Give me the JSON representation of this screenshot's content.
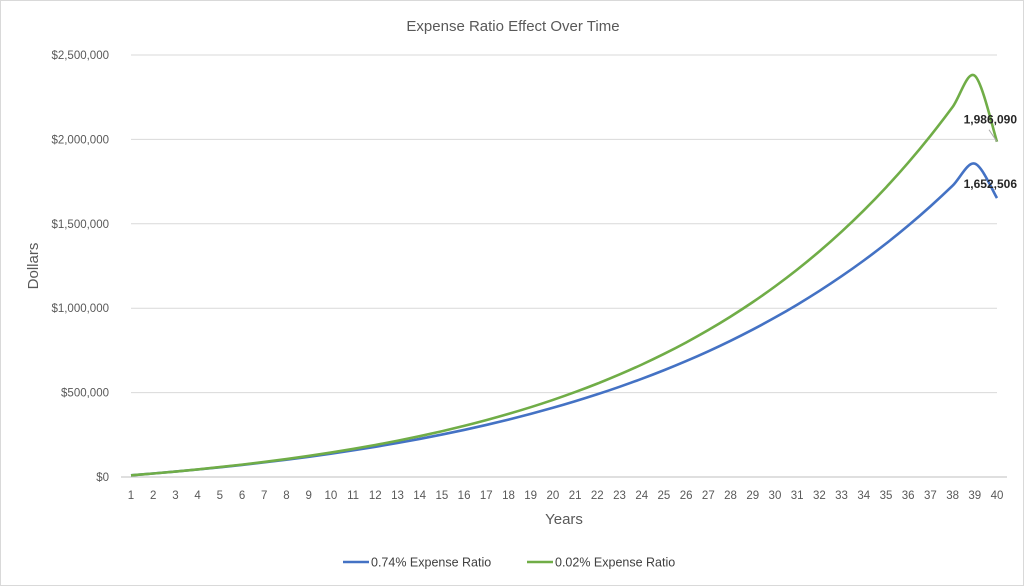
{
  "chart_data": {
    "type": "line",
    "title": "Expense Ratio Effect Over Time",
    "xlabel": "Years",
    "ylabel": "Dollars",
    "x": [
      1,
      2,
      3,
      4,
      5,
      6,
      7,
      8,
      9,
      10,
      11,
      12,
      13,
      14,
      15,
      16,
      17,
      18,
      19,
      20,
      21,
      22,
      23,
      24,
      25,
      26,
      27,
      28,
      29,
      30,
      31,
      32,
      33,
      34,
      35,
      36,
      37,
      38,
      39,
      40
    ],
    "ylim": [
      0,
      2500000
    ],
    "yticks": [
      0,
      500000,
      1000000,
      1500000,
      2000000,
      2500000
    ],
    "ytick_labels": [
      "$0",
      "$500,000",
      "$1,000,000",
      "$1,500,000",
      "$2,000,000",
      "$2,500,000"
    ],
    "grid": true,
    "legend_position": "bottom",
    "series": [
      {
        "name": "0.74% Expense Ratio",
        "color": "#4472c4",
        "values": [
          10000,
          20700,
          32149,
          44399,
          57507,
          71533,
          86540,
          102598,
          119780,
          138164,
          157836,
          178884,
          201406,
          225504,
          251290,
          278880,
          308402,
          339990,
          373790,
          409955,
          448652,
          490058,
          534362,
          581768,
          632492,
          686766,
          744840,
          806979,
          873468,
          944611,
          1020733,
          1102184,
          1189337,
          1282590,
          1382371,
          1489137,
          1603376,
          1725612,
          1856405,
          1652506
        ]
      },
      {
        "name": "0.02% Expense Ratio",
        "color": "#70ad47",
        "values": [
          10000,
          20798,
          32458,
          45048,
          58643,
          73323,
          89174,
          106290,
          124772,
          144728,
          166276,
          189544,
          214668,
          241797,
          271091,
          302722,
          336877,
          373758,
          413581,
          456583,
          503016,
          553155,
          607294,
          665753,
          728876,
          797036,
          870634,
          950104,
          1035915,
          1128573,
          1228624,
          1336658,
          1453309,
          1579269,
          1715279,
          1862141,
          2020721,
          2191954,
          2376853,
          1986090
        ]
      }
    ],
    "annotations": [
      {
        "series": 0,
        "x": 40,
        "text": "1,652,506"
      },
      {
        "series": 1,
        "x": 40,
        "text": "1,986,090"
      }
    ]
  }
}
